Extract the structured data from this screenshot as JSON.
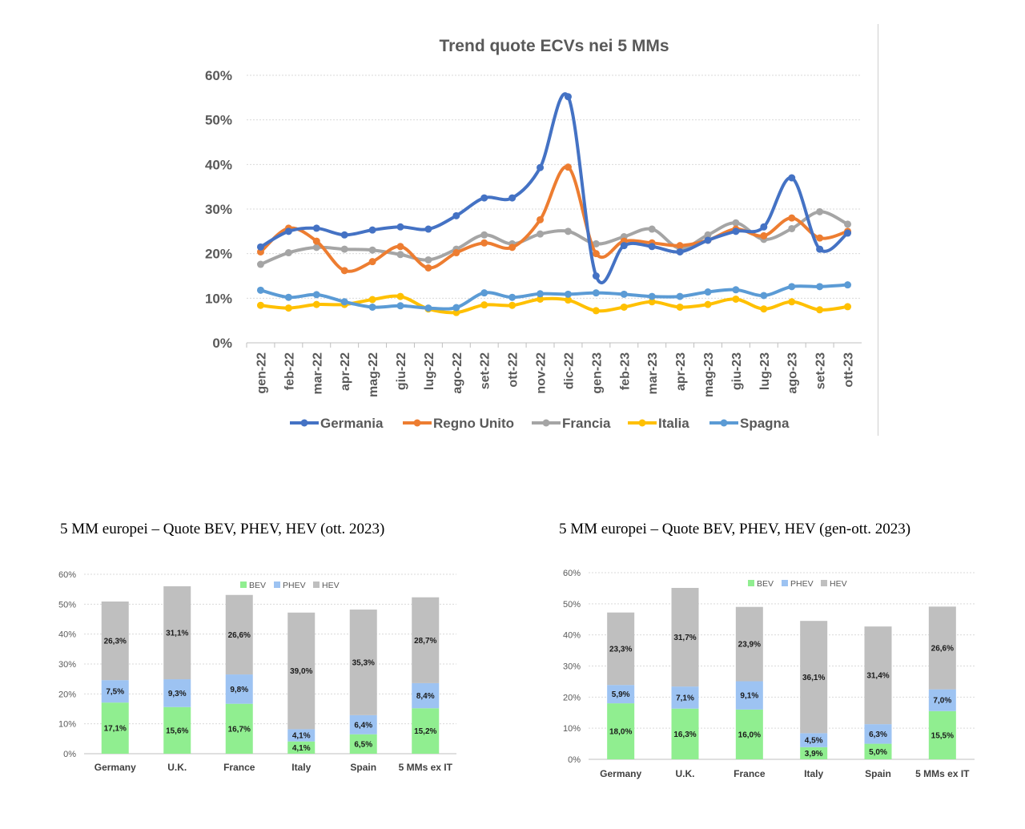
{
  "chart_data": [
    {
      "type": "line",
      "title": "Trend quote ECVs nei 5 MMs",
      "ylim": [
        0,
        60
      ],
      "y_ticks": [
        "0%",
        "10%",
        "20%",
        "30%",
        "40%",
        "50%",
        "60%"
      ],
      "grid": true,
      "legend_position": "bottom",
      "categories": [
        "gen-22",
        "feb-22",
        "mar-22",
        "apr-22",
        "mag-22",
        "giu-22",
        "lug-22",
        "ago-22",
        "set-22",
        "ott-22",
        "nov-22",
        "dic-22",
        "gen-23",
        "feb-23",
        "mar-23",
        "apr-23",
        "mag-23",
        "giu-23",
        "lug-23",
        "ago-23",
        "set-23",
        "ott-23"
      ],
      "series": [
        {
          "name": "Germania",
          "color": "#4472C4",
          "values": [
            21.5,
            25,
            25.7,
            24.2,
            25.3,
            26,
            25.5,
            28.5,
            32.5,
            32.5,
            39.3,
            55.2,
            15,
            21.8,
            21.6,
            20.4,
            23,
            25,
            26,
            37,
            21,
            24.6
          ]
        },
        {
          "name": "Regno Unito",
          "color": "#ED7D31",
          "values": [
            20.4,
            25.7,
            22.8,
            16.2,
            18.2,
            21.6,
            16.8,
            20.2,
            22.4,
            21.4,
            27.6,
            39.4,
            20,
            22.8,
            22.4,
            21.8,
            23,
            25.5,
            24,
            28,
            23.5,
            25
          ]
        },
        {
          "name": "Francia",
          "color": "#A5A5A5",
          "values": [
            17.6,
            20.2,
            21.4,
            21,
            20.8,
            19.8,
            18.6,
            21,
            24.2,
            22.2,
            24.4,
            25,
            22.2,
            23.8,
            25.5,
            21.2,
            24.2,
            26.9,
            23.2,
            25.6,
            29.4,
            26.6
          ]
        },
        {
          "name": "Italia",
          "color": "#FFC000",
          "values": [
            8.4,
            7.8,
            8.6,
            8.6,
            9.7,
            10.4,
            7.6,
            6.8,
            8.5,
            8.4,
            9.8,
            9.6,
            7.2,
            8,
            9.2,
            8,
            8.6,
            9.8,
            7.6,
            9.2,
            7.4,
            8.1
          ]
        },
        {
          "name": "Spagna",
          "color": "#5B9BD5",
          "values": [
            11.8,
            10.2,
            10.8,
            9.2,
            8,
            8.3,
            7.8,
            7.9,
            11.2,
            10.2,
            11,
            10.9,
            11.2,
            10.9,
            10.4,
            10.4,
            11.4,
            11.9,
            10.6,
            12.6,
            12.6,
            13
          ]
        }
      ]
    },
    {
      "type": "bar",
      "stacked": true,
      "title": "5 MM europei – Quote BEV, PHEV, HEV (ott. 2023)",
      "ylim": [
        0,
        60
      ],
      "y_ticks": [
        "0%",
        "10%",
        "20%",
        "30%",
        "40%",
        "50%",
        "60%"
      ],
      "grid": true,
      "legend_position": "top",
      "categories": [
        "Germany",
        "U.K.",
        "France",
        "Italy",
        "Spain",
        "5 MMs ex IT"
      ],
      "series": [
        {
          "name": "BEV",
          "color": "#90EE90",
          "values": [
            17.1,
            15.6,
            16.7,
            4.1,
            6.5,
            15.2
          ],
          "labels": [
            "17,1%",
            "15,6%",
            "16,7%",
            "4,1%",
            "6,5%",
            "15,2%"
          ]
        },
        {
          "name": "PHEV",
          "color": "#9DC3F2",
          "values": [
            7.5,
            9.3,
            9.8,
            4.1,
            6.4,
            8.4
          ],
          "labels": [
            "7,5%",
            "9,3%",
            "9,8%",
            "4,1%",
            "6,4%",
            "8,4%"
          ]
        },
        {
          "name": "HEV",
          "color": "#BFBFBF",
          "values": [
            26.3,
            31.1,
            26.6,
            39.0,
            35.3,
            28.7
          ],
          "labels": [
            "26,3%",
            "31,1%",
            "26,6%",
            "39,0%",
            "35,3%",
            "28,7%"
          ]
        }
      ]
    },
    {
      "type": "bar",
      "stacked": true,
      "title": "5 MM europei – Quote BEV, PHEV, HEV (gen-ott. 2023)",
      "ylim": [
        0,
        60
      ],
      "y_ticks": [
        "0%",
        "10%",
        "20%",
        "30%",
        "40%",
        "50%",
        "60%"
      ],
      "grid": true,
      "legend_position": "top",
      "categories": [
        "Germany",
        "U.K.",
        "France",
        "Italy",
        "Spain",
        "5 MMs ex IT"
      ],
      "series": [
        {
          "name": "BEV",
          "color": "#90EE90",
          "values": [
            18.0,
            16.3,
            16.0,
            3.9,
            5.0,
            15.5
          ],
          "labels": [
            "18,0%",
            "16,3%",
            "16,0%",
            "3,9%",
            "5,0%",
            "15,5%"
          ]
        },
        {
          "name": "PHEV",
          "color": "#9DC3F2",
          "values": [
            5.9,
            7.1,
            9.1,
            4.5,
            6.3,
            7.0
          ],
          "labels": [
            "5,9%",
            "7,1%",
            "9,1%",
            "4,5%",
            "6,3%",
            "7,0%"
          ]
        },
        {
          "name": "HEV",
          "color": "#BFBFBF",
          "values": [
            23.3,
            31.7,
            23.9,
            36.1,
            31.4,
            26.6
          ],
          "labels": [
            "23,3%",
            "31,7%",
            "23,9%",
            "36,1%",
            "31,4%",
            "26,6%"
          ]
        }
      ]
    }
  ]
}
